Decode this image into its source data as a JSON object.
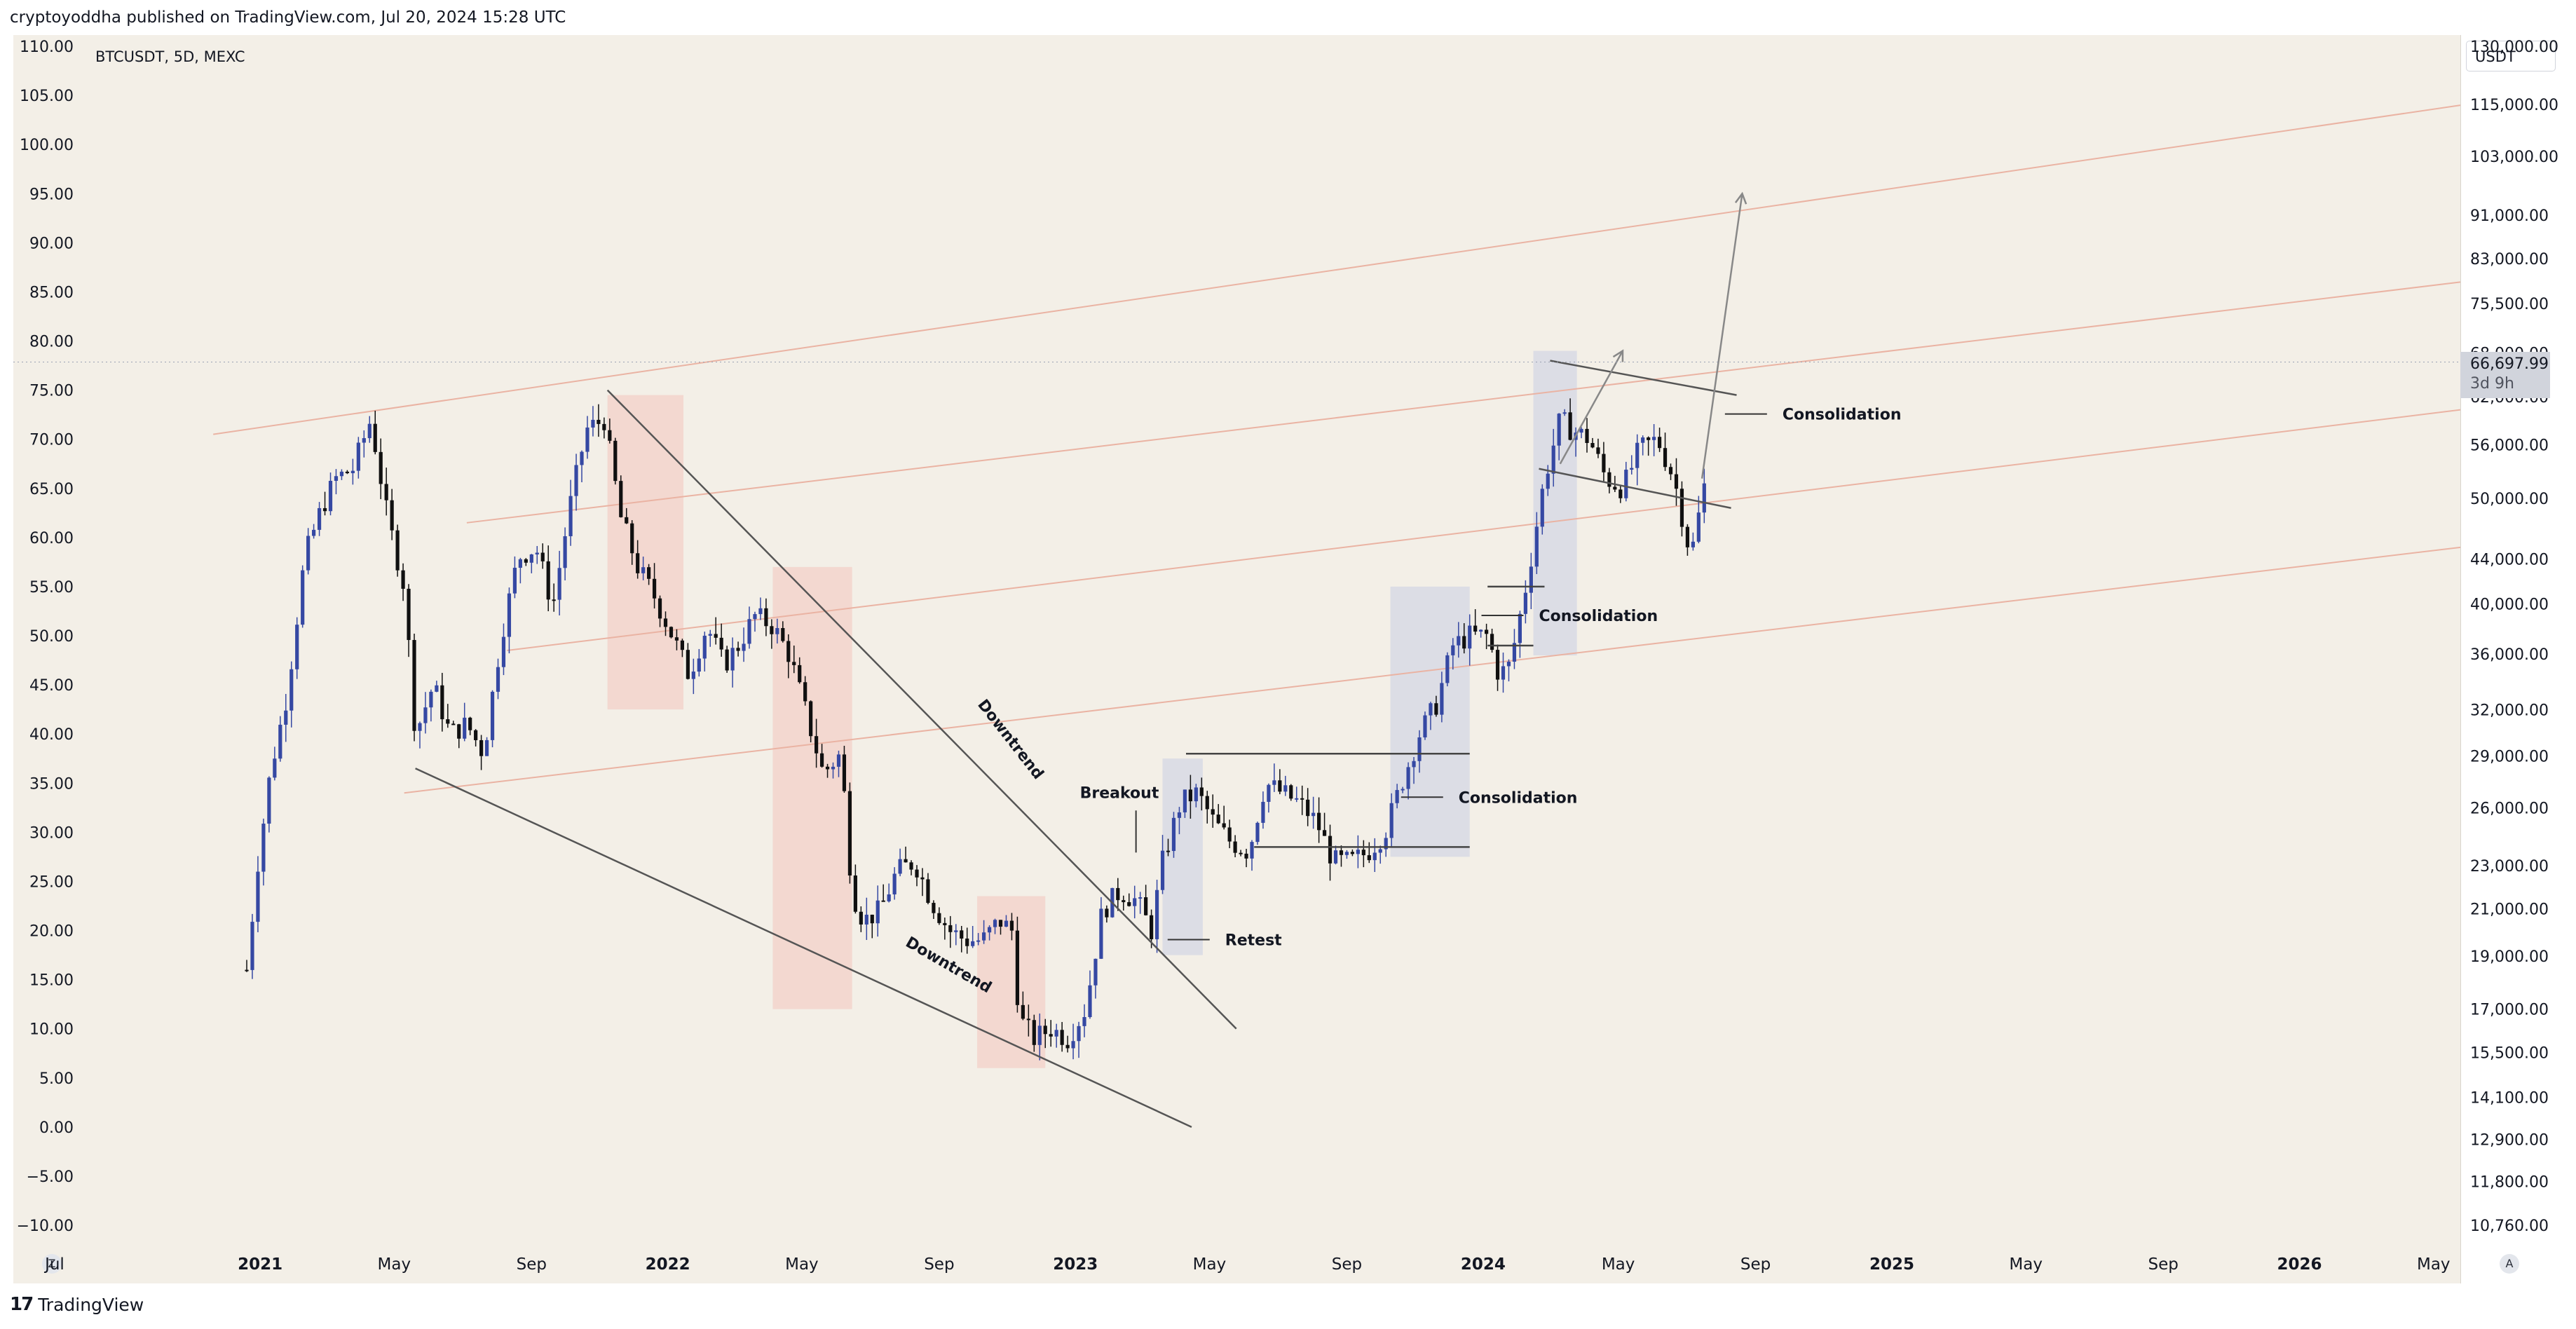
{
  "header": {
    "publisher_line": "cryptoyoddha published on TradingView.com, Jul 20, 2024 15:28 UTC"
  },
  "symbol_label": "BTCUSDT, 5D, MEXC",
  "currency_selector": "USDT",
  "footer": {
    "brand": "TradingView",
    "logo_glyph": "17"
  },
  "buttons": {
    "left": "Z",
    "right": "A"
  },
  "price_tag": {
    "price": "66,697.99",
    "countdown": "3d 9h",
    "right_axis_value": 66697.99
  },
  "chart_data": {
    "type": "candlestick",
    "symbol": "BTCUSDT",
    "interval": "5D",
    "exchange": "MEXC",
    "x_range": [
      "2020-05-25",
      "2026-05-25"
    ],
    "left_axis": {
      "ticks": [
        110,
        105,
        100,
        95,
        90,
        85,
        80,
        75,
        70,
        65,
        60,
        55,
        50,
        45,
        40,
        35,
        30,
        25,
        20,
        15,
        10,
        5,
        0,
        -5,
        -10
      ],
      "tick_labels": [
        "110.00",
        "105.00",
        "100.00",
        "95.00",
        "90.00",
        "85.00",
        "80.00",
        "75.00",
        "70.00",
        "65.00",
        "60.00",
        "55.00",
        "50.00",
        "45.00",
        "40.00",
        "35.00",
        "30.00",
        "25.00",
        "20.00",
        "15.00",
        "10.00",
        "5.00",
        "0.00",
        "−5.00",
        "−10.00"
      ],
      "range": [
        -10,
        110
      ]
    },
    "right_axis": {
      "scale": "log",
      "range": [
        10760,
        130000
      ],
      "ticks": [
        130000,
        115000,
        103000,
        91000,
        83000,
        75500,
        68000,
        62000,
        56000,
        50000,
        44000,
        40000,
        36000,
        32000,
        29000,
        26000,
        23000,
        21000,
        19000,
        17000,
        15500,
        14100,
        12900,
        11800,
        10760
      ],
      "tick_labels": [
        "130,000.00",
        "115,000.00",
        "103,000.00",
        "91,000.00",
        "83,000.00",
        "75,500.00",
        "68,000.00",
        "62,000.00",
        "56,000.00",
        "50,000.00",
        "44,000.00",
        "40,000.00",
        "36,000.00",
        "32,000.00",
        "29,000.00",
        "26,000.00",
        "23,000.00",
        "21,000.00",
        "19,000.00",
        "17,000.00",
        "15,500.00",
        "14,100.00",
        "12,900.00",
        "11,800.00",
        "10,760.00"
      ]
    },
    "x_axis": {
      "labels": [
        {
          "text": "Jul",
          "date": "2020-07-01",
          "bold": false
        },
        {
          "text": "2021",
          "date": "2021-01-01",
          "bold": true
        },
        {
          "text": "May",
          "date": "2021-05-01",
          "bold": false
        },
        {
          "text": "Sep",
          "date": "2021-09-01",
          "bold": false
        },
        {
          "text": "2022",
          "date": "2022-01-01",
          "bold": true
        },
        {
          "text": "May",
          "date": "2022-05-01",
          "bold": false
        },
        {
          "text": "Sep",
          "date": "2022-09-01",
          "bold": false
        },
        {
          "text": "2023",
          "date": "2023-01-01",
          "bold": true
        },
        {
          "text": "May",
          "date": "2023-05-01",
          "bold": false
        },
        {
          "text": "Sep",
          "date": "2023-09-01",
          "bold": false
        },
        {
          "text": "2024",
          "date": "2024-01-01",
          "bold": true
        },
        {
          "text": "May",
          "date": "2024-05-01",
          "bold": false
        },
        {
          "text": "Sep",
          "date": "2024-09-01",
          "bold": false
        },
        {
          "text": "2025",
          "date": "2025-01-01",
          "bold": true
        },
        {
          "text": "May",
          "date": "2025-05-01",
          "bold": false
        },
        {
          "text": "Sep",
          "date": "2025-09-01",
          "bold": false
        },
        {
          "text": "2026",
          "date": "2026-01-01",
          "bold": true
        },
        {
          "text": "May",
          "date": "2026-05-01",
          "bold": false
        }
      ]
    },
    "price_path": [
      [
        "2020-12-20",
        16
      ],
      [
        "2020-12-30",
        27
      ],
      [
        "2021-01-10",
        36
      ],
      [
        "2021-01-25",
        44
      ],
      [
        "2021-02-10",
        58
      ],
      [
        "2021-02-25",
        63
      ],
      [
        "2021-03-10",
        66
      ],
      [
        "2021-03-25",
        67
      ],
      [
        "2021-04-10",
        72
      ],
      [
        "2021-04-25",
        62
      ],
      [
        "2021-05-10",
        55
      ],
      [
        "2021-05-20",
        40
      ],
      [
        "2021-06-05",
        45
      ],
      [
        "2021-06-20",
        40
      ],
      [
        "2021-07-05",
        41
      ],
      [
        "2021-07-20",
        38
      ],
      [
        "2021-08-05",
        50
      ],
      [
        "2021-08-20",
        58
      ],
      [
        "2021-09-05",
        59
      ],
      [
        "2021-09-20",
        53
      ],
      [
        "2021-10-05",
        63
      ],
      [
        "2021-10-20",
        71
      ],
      [
        "2021-11-05",
        72
      ],
      [
        "2021-11-20",
        62
      ],
      [
        "2021-12-05",
        57
      ],
      [
        "2021-12-20",
        54
      ],
      [
        "2022-01-05",
        50
      ],
      [
        "2022-01-20",
        46
      ],
      [
        "2022-02-05",
        51
      ],
      [
        "2022-02-20",
        47
      ],
      [
        "2022-03-05",
        49
      ],
      [
        "2022-03-20",
        52
      ],
      [
        "2022-04-05",
        51
      ],
      [
        "2022-04-20",
        48
      ],
      [
        "2022-05-05",
        42
      ],
      [
        "2022-05-20",
        36
      ],
      [
        "2022-06-05",
        38
      ],
      [
        "2022-06-15",
        24
      ],
      [
        "2022-06-25",
        21
      ],
      [
        "2022-07-10",
        22
      ],
      [
        "2022-07-25",
        26
      ],
      [
        "2022-08-10",
        27
      ],
      [
        "2022-08-25",
        23
      ],
      [
        "2022-09-10",
        20
      ],
      [
        "2022-09-25",
        19
      ],
      [
        "2022-10-10",
        19
      ],
      [
        "2022-10-25",
        21
      ],
      [
        "2022-11-05",
        20
      ],
      [
        "2022-11-12",
        11
      ],
      [
        "2022-11-25",
        9
      ],
      [
        "2022-12-10",
        10
      ],
      [
        "2022-12-25",
        9
      ],
      [
        "2023-01-10",
        12
      ],
      [
        "2023-01-25",
        22
      ],
      [
        "2023-02-10",
        24
      ],
      [
        "2023-02-25",
        23
      ],
      [
        "2023-03-10",
        20
      ],
      [
        "2023-03-20",
        27
      ],
      [
        "2023-04-05",
        33
      ],
      [
        "2023-04-20",
        34
      ],
      [
        "2023-05-05",
        31
      ],
      [
        "2023-05-20",
        29
      ],
      [
        "2023-06-05",
        28
      ],
      [
        "2023-06-20",
        35
      ],
      [
        "2023-07-05",
        34
      ],
      [
        "2023-07-20",
        33
      ],
      [
        "2023-08-05",
        31
      ],
      [
        "2023-08-20",
        27
      ],
      [
        "2023-09-05",
        27
      ],
      [
        "2023-09-20",
        28
      ],
      [
        "2023-10-05",
        30
      ],
      [
        "2023-10-20",
        35
      ],
      [
        "2023-11-05",
        40
      ],
      [
        "2023-11-20",
        43
      ],
      [
        "2023-12-05",
        49
      ],
      [
        "2023-12-20",
        50
      ],
      [
        "2024-01-05",
        50
      ],
      [
        "2024-01-15",
        46
      ],
      [
        "2024-01-25",
        47
      ],
      [
        "2024-02-10",
        56
      ],
      [
        "2024-02-25",
        66
      ],
      [
        "2024-03-10",
        72
      ],
      [
        "2024-03-20",
        71
      ],
      [
        "2024-04-05",
        70
      ],
      [
        "2024-04-20",
        66
      ],
      [
        "2024-05-05",
        65
      ],
      [
        "2024-05-20",
        69
      ],
      [
        "2024-06-05",
        70
      ],
      [
        "2024-06-20",
        66
      ],
      [
        "2024-07-05",
        58
      ],
      [
        "2024-07-20",
        67
      ]
    ],
    "annotations": [
      {
        "text": "Downtrend",
        "kind": "label",
        "date": "2022-08-01",
        "value": 18.5,
        "angle": 30
      },
      {
        "text": "Downtrend",
        "kind": "label",
        "date": "2022-10-05",
        "value": 43,
        "angle": 52
      },
      {
        "text": "Breakout",
        "kind": "label",
        "date": "2023-01-05",
        "value": 33.5
      },
      {
        "text": "Retest",
        "kind": "label",
        "date": "2023-05-15",
        "value": 18.5
      },
      {
        "text": "Consolidation",
        "kind": "label",
        "date": "2023-12-10",
        "value": 33
      },
      {
        "text": "Consolidation",
        "kind": "label",
        "date": "2024-02-20",
        "value": 51.5
      },
      {
        "text": "Consolidation",
        "kind": "label",
        "date": "2024-09-25",
        "value": 72
      }
    ],
    "trendlines": [
      {
        "from": [
          "2021-11-08",
          75
        ],
        "to": [
          "2023-05-25",
          10
        ],
        "color": "#555555"
      },
      {
        "from": [
          "2021-05-20",
          36.5
        ],
        "to": [
          "2023-04-15",
          0
        ],
        "color": "#555555"
      },
      {
        "from": [
          "2024-03-01",
          78
        ],
        "to": [
          "2024-08-15",
          74.5
        ],
        "color": "#555555"
      },
      {
        "from": [
          "2024-02-20",
          67
        ],
        "to": [
          "2024-08-10",
          63
        ],
        "color": "#555555"
      },
      {
        "from": [
          "2024-03-10",
          67.5
        ],
        "to": [
          "2024-05-05",
          79
        ],
        "color": "#888888"
      },
      {
        "from": [
          "2024-07-15",
          66
        ],
        "to": [
          "2024-08-20",
          95
        ],
        "color": "#888888"
      },
      {
        "from": [
          "2023-04-10",
          38
        ],
        "to": [
          "2023-12-20",
          38
        ],
        "color": "#444444"
      },
      {
        "from": [
          "2023-06-10",
          28.5
        ],
        "to": [
          "2023-12-20",
          28.5
        ],
        "color": "#444444"
      },
      {
        "from": [
          "2024-01-05",
          55
        ],
        "to": [
          "2024-02-25",
          55
        ],
        "color": "#444444"
      },
      {
        "from": [
          "2024-01-05",
          49
        ],
        "to": [
          "2024-02-15",
          49
        ],
        "color": "#444444"
      }
    ],
    "channels": [
      {
        "from": [
          "2020-11-20",
          70.5
        ],
        "to": [
          "2026-05-25",
          104
        ],
        "color": "#eab3a3"
      },
      {
        "from": [
          "2021-07-05",
          61.5
        ],
        "to": [
          "2026-05-25",
          86
        ],
        "color": "#eab3a3"
      },
      {
        "from": [
          "2021-08-10",
          48.5
        ],
        "to": [
          "2026-05-25",
          73
        ],
        "color": "#eab3a3"
      },
      {
        "from": [
          "2021-05-10",
          34
        ],
        "to": [
          "2026-05-25",
          59
        ],
        "color": "#eab3a3"
      }
    ],
    "zones": [
      {
        "x": [
          "2021-11-08",
          "2022-01-15"
        ],
        "y": [
          42.5,
          74.5
        ],
        "color": "#f2c4bd"
      },
      {
        "x": [
          "2022-04-05",
          "2022-06-15"
        ],
        "y": [
          12,
          57
        ],
        "color": "#f2c4bd"
      },
      {
        "x": [
          "2022-10-05",
          "2022-12-05"
        ],
        "y": [
          6,
          23.5
        ],
        "color": "#f2c4bd"
      },
      {
        "x": [
          "2023-03-20",
          "2023-04-25"
        ],
        "y": [
          17.5,
          37.5
        ],
        "color": "#c8cee4"
      },
      {
        "x": [
          "2023-10-10",
          "2023-12-20"
        ],
        "y": [
          27.5,
          55
        ],
        "color": "#c8cee4"
      },
      {
        "x": [
          "2024-02-15",
          "2024-03-25"
        ],
        "y": [
          48,
          79
        ],
        "color": "#c8cee4"
      }
    ],
    "colors": {
      "bull": "#3548a3",
      "bear": "#101010",
      "background": "#f3efe7"
    },
    "grid": false,
    "legend": "none"
  }
}
